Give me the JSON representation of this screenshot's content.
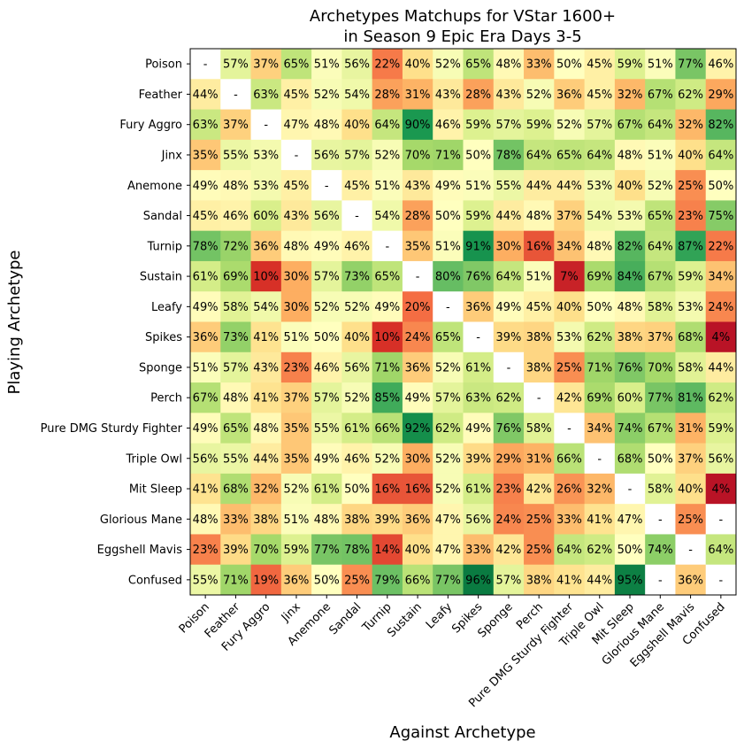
{
  "chart_data": {
    "type": "heatmap",
    "title_line1": "Archetypes Matchups for VStar 1600+",
    "title_line2": "in Season 9 Epic Era Days 3-5",
    "xlabel": "Against Archetype",
    "ylabel": "Playing Archetype",
    "missing_label": "-",
    "value_suffix": "%",
    "colormap": "RdYlGn",
    "color_range": [
      0,
      100
    ],
    "rows": [
      "Poison",
      "Feather",
      "Fury Aggro",
      "Jinx",
      "Anemone",
      "Sandal",
      "Turnip",
      "Sustain",
      "Leafy",
      "Spikes",
      "Sponge",
      "Perch",
      "Pure DMG Sturdy Fighter",
      "Triple Owl",
      "Mit Sleep",
      "Glorious Mane",
      "Eggshell Mavis",
      "Confused"
    ],
    "columns": [
      "Poison",
      "Feather",
      "Fury Aggro",
      "Jinx",
      "Anemone",
      "Sandal",
      "Turnip",
      "Sustain",
      "Leafy",
      "Spikes",
      "Sponge",
      "Perch",
      "Pure DMG Sturdy Fighter",
      "Triple Owl",
      "Mit Sleep",
      "Glorious Mane",
      "Eggshell Mavis",
      "Confused"
    ],
    "values": [
      [
        null,
        57,
        37,
        65,
        51,
        56,
        22,
        40,
        52,
        65,
        48,
        33,
        50,
        45,
        59,
        51,
        77,
        46
      ],
      [
        44,
        null,
        63,
        45,
        52,
        54,
        28,
        31,
        43,
        28,
        43,
        52,
        36,
        45,
        32,
        67,
        62,
        29
      ],
      [
        63,
        37,
        null,
        47,
        48,
        40,
        64,
        90,
        46,
        59,
        57,
        59,
        52,
        57,
        67,
        64,
        32,
        82
      ],
      [
        35,
        55,
        53,
        null,
        56,
        57,
        52,
        70,
        71,
        50,
        78,
        64,
        65,
        64,
        48,
        51,
        40,
        64
      ],
      [
        49,
        48,
        53,
        45,
        null,
        45,
        51,
        43,
        49,
        51,
        55,
        44,
        44,
        53,
        40,
        52,
        25,
        50
      ],
      [
        45,
        46,
        60,
        43,
        56,
        null,
        54,
        28,
        50,
        59,
        44,
        48,
        37,
        54,
        53,
        65,
        23,
        75
      ],
      [
        78,
        72,
        36,
        48,
        49,
        46,
        null,
        35,
        51,
        91,
        30,
        16,
        34,
        48,
        82,
        64,
        87,
        22
      ],
      [
        61,
        69,
        10,
        30,
        57,
        73,
        65,
        null,
        80,
        76,
        64,
        51,
        7,
        69,
        84,
        67,
        59,
        34
      ],
      [
        49,
        58,
        54,
        30,
        52,
        52,
        49,
        20,
        null,
        36,
        49,
        45,
        40,
        50,
        48,
        58,
        53,
        24
      ],
      [
        36,
        73,
        41,
        51,
        50,
        40,
        10,
        24,
        65,
        null,
        39,
        38,
        53,
        62,
        38,
        37,
        68,
        4
      ],
      [
        51,
        57,
        43,
        23,
        46,
        56,
        71,
        36,
        52,
        61,
        null,
        38,
        25,
        71,
        76,
        70,
        58,
        44
      ],
      [
        67,
        48,
        41,
        37,
        57,
        52,
        85,
        49,
        57,
        63,
        62,
        null,
        42,
        69,
        60,
        77,
        81,
        62
      ],
      [
        49,
        65,
        48,
        35,
        55,
        61,
        66,
        92,
        62,
        49,
        76,
        58,
        null,
        34,
        74,
        67,
        31,
        59
      ],
      [
        56,
        55,
        44,
        35,
        49,
        46,
        52,
        30,
        52,
        39,
        29,
        31,
        66,
        null,
        68,
        50,
        37,
        56
      ],
      [
        41,
        68,
        32,
        52,
        61,
        50,
        16,
        16,
        52,
        61,
        23,
        42,
        26,
        32,
        null,
        58,
        40,
        4
      ],
      [
        48,
        33,
        38,
        51,
        48,
        38,
        39,
        36,
        47,
        56,
        24,
        25,
        33,
        41,
        47,
        null,
        25,
        null
      ],
      [
        23,
        39,
        70,
        59,
        77,
        78,
        14,
        40,
        47,
        33,
        42,
        25,
        64,
        62,
        50,
        74,
        null,
        64
      ],
      [
        55,
        71,
        19,
        36,
        50,
        25,
        79,
        66,
        77,
        96,
        57,
        38,
        41,
        44,
        95,
        null,
        36,
        null
      ]
    ]
  }
}
